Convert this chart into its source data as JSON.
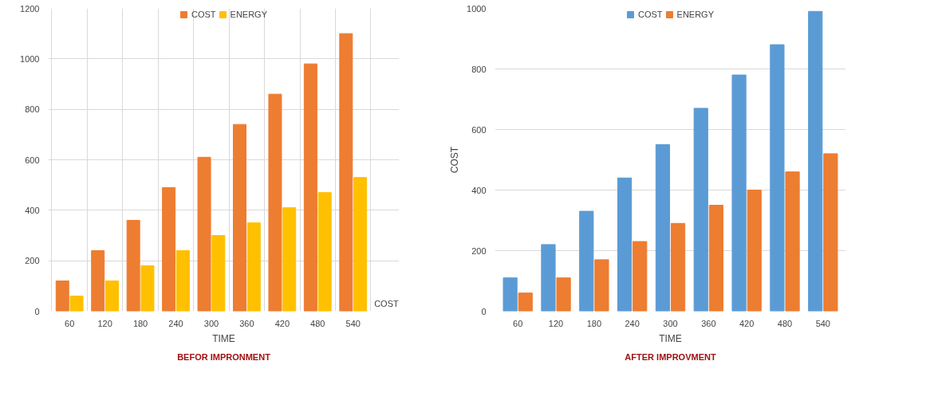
{
  "chart_data": [
    {
      "type": "bar",
      "title": "BEFOR IMPRONMENT",
      "xlabel": "TIME",
      "annotations": [
        "COST"
      ],
      "categories": [
        "60",
        "120",
        "180",
        "240",
        "300",
        "360",
        "420",
        "480",
        "540"
      ],
      "series": [
        {
          "name": "COST",
          "color": "#ed7d31",
          "values": [
            120,
            240,
            360,
            490,
            610,
            740,
            860,
            980,
            1100
          ]
        },
        {
          "name": "ENERGY",
          "color": "#ffc000",
          "values": [
            60,
            120,
            180,
            240,
            300,
            350,
            410,
            470,
            530
          ]
        }
      ],
      "ylim": [
        0,
        1200
      ],
      "yticks": [
        0,
        200,
        400,
        600,
        800,
        1000,
        1200
      ],
      "grid": true,
      "legend": "top"
    },
    {
      "type": "bar",
      "title": "AFTER IMPROVMENT",
      "xlabel": "TIME",
      "ylabel": "COST",
      "categories": [
        "60",
        "120",
        "180",
        "240",
        "300",
        "360",
        "420",
        "480",
        "540"
      ],
      "series": [
        {
          "name": "COST",
          "color": "#5b9bd5",
          "values": [
            110,
            220,
            330,
            440,
            550,
            670,
            780,
            880,
            990
          ]
        },
        {
          "name": "ENERGY",
          "color": "#ed7d31",
          "values": [
            60,
            110,
            170,
            230,
            290,
            350,
            400,
            460,
            520
          ]
        }
      ],
      "ylim": [
        0,
        1000
      ],
      "yticks": [
        0,
        200,
        400,
        600,
        800,
        1000
      ],
      "grid": "y",
      "legend": "top"
    }
  ]
}
